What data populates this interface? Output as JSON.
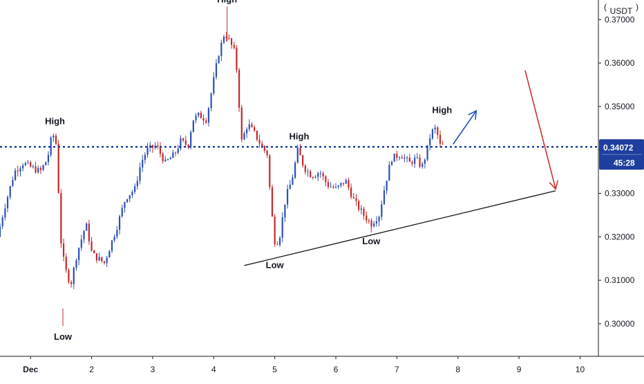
{
  "chart_data": {
    "type": "candlestick",
    "currency_label": "USDT",
    "colors": {
      "up": "#2a50b8",
      "down": "#c62828",
      "hline": "#1e3f9e",
      "trendline": "#111111",
      "arrow_up": "#1e4fb0",
      "arrow_down": "#d32f2f",
      "price_tag_bg": "#1e3f9e",
      "price_tag_fg": "#ffffff",
      "axis_line": "#131722",
      "grid": "#ffffff"
    },
    "y_axis": {
      "ylim": [
        0.2925,
        0.3745
      ],
      "ticks": [
        "0.37000",
        "0.36000",
        "0.35000",
        "0.34000",
        "0.33000",
        "0.32000",
        "0.31000",
        "0.30000"
      ]
    },
    "x_axis": {
      "xlim": [
        0.5,
        10.3
      ],
      "ticks": [
        {
          "value": 1,
          "label": "Dec"
        },
        {
          "value": 2,
          "label": "2"
        },
        {
          "value": 3,
          "label": "3"
        },
        {
          "value": 4,
          "label": "4"
        },
        {
          "value": 5,
          "label": "5"
        },
        {
          "value": 6,
          "label": "6"
        },
        {
          "value": 7,
          "label": "7"
        },
        {
          "value": 8,
          "label": "8"
        },
        {
          "value": 9,
          "label": "9"
        },
        {
          "value": 10,
          "label": "10"
        }
      ]
    },
    "current_price": {
      "value": 0.3407,
      "label": "0.34072",
      "countdown": "45:28"
    },
    "anchors": [
      [
        0.5,
        0.32
      ],
      [
        0.62,
        0.327
      ],
      [
        0.78,
        0.335
      ],
      [
        0.92,
        0.337
      ],
      [
        1.05,
        0.336
      ],
      [
        1.2,
        0.335
      ],
      [
        1.32,
        0.338
      ],
      [
        1.4,
        0.344
      ],
      [
        1.47,
        0.341
      ],
      [
        1.53,
        0.32
      ],
      [
        1.6,
        0.313
      ],
      [
        1.7,
        0.309
      ],
      [
        1.8,
        0.316
      ],
      [
        1.95,
        0.323
      ],
      [
        2.05,
        0.316
      ],
      [
        2.25,
        0.314
      ],
      [
        2.45,
        0.322
      ],
      [
        2.6,
        0.329
      ],
      [
        2.75,
        0.331
      ],
      [
        2.85,
        0.337
      ],
      [
        2.95,
        0.34
      ],
      [
        3.1,
        0.341
      ],
      [
        3.25,
        0.337
      ],
      [
        3.4,
        0.339
      ],
      [
        3.5,
        0.342
      ],
      [
        3.62,
        0.341
      ],
      [
        3.7,
        0.347
      ],
      [
        3.8,
        0.348
      ],
      [
        3.92,
        0.347
      ],
      [
        4.0,
        0.353
      ],
      [
        4.12,
        0.362
      ],
      [
        4.22,
        0.367
      ],
      [
        4.3,
        0.365
      ],
      [
        4.4,
        0.362
      ],
      [
        4.45,
        0.352
      ],
      [
        4.5,
        0.342
      ],
      [
        4.6,
        0.346
      ],
      [
        4.7,
        0.344
      ],
      [
        4.82,
        0.341
      ],
      [
        4.92,
        0.339
      ],
      [
        4.98,
        0.327
      ],
      [
        5.05,
        0.318
      ],
      [
        5.12,
        0.32
      ],
      [
        5.22,
        0.329
      ],
      [
        5.32,
        0.333
      ],
      [
        5.42,
        0.34
      ],
      [
        5.52,
        0.336
      ],
      [
        5.65,
        0.334
      ],
      [
        5.78,
        0.335
      ],
      [
        5.9,
        0.332
      ],
      [
        6.05,
        0.331
      ],
      [
        6.2,
        0.333
      ],
      [
        6.35,
        0.328
      ],
      [
        6.5,
        0.325
      ],
      [
        6.62,
        0.323
      ],
      [
        6.75,
        0.325
      ],
      [
        6.85,
        0.332
      ],
      [
        6.95,
        0.338
      ],
      [
        7.1,
        0.339
      ],
      [
        7.25,
        0.337
      ],
      [
        7.35,
        0.338
      ],
      [
        7.45,
        0.336
      ],
      [
        7.52,
        0.339
      ],
      [
        7.6,
        0.344
      ],
      [
        7.68,
        0.345
      ],
      [
        7.75,
        0.341
      ]
    ],
    "annotations": [
      {
        "text": "High",
        "x": 1.4,
        "y": 0.345,
        "position": "above"
      },
      {
        "text": "Low",
        "x": 1.53,
        "y": 0.299,
        "position": "below"
      },
      {
        "text": "High",
        "x": 4.22,
        "y": 0.373,
        "position": "above"
      },
      {
        "text": "High",
        "x": 5.4,
        "y": 0.3415,
        "position": "above"
      },
      {
        "text": "Low",
        "x": 5.0,
        "y": 0.3155,
        "position": "below"
      },
      {
        "text": "Low",
        "x": 6.58,
        "y": 0.321,
        "position": "below"
      },
      {
        "text": "High",
        "x": 7.74,
        "y": 0.3475,
        "position": "above"
      }
    ],
    "trendline": {
      "x1": 4.5,
      "y1": 0.3134,
      "x2": 9.6,
      "y2": 0.3306
    },
    "arrow_up": {
      "x1": 7.92,
      "y1": 0.3413,
      "x2": 8.3,
      "y2": 0.349
    },
    "arrow_down": {
      "x1": 9.1,
      "y1": 0.3583,
      "x2": 9.6,
      "y2": 0.331
    }
  }
}
